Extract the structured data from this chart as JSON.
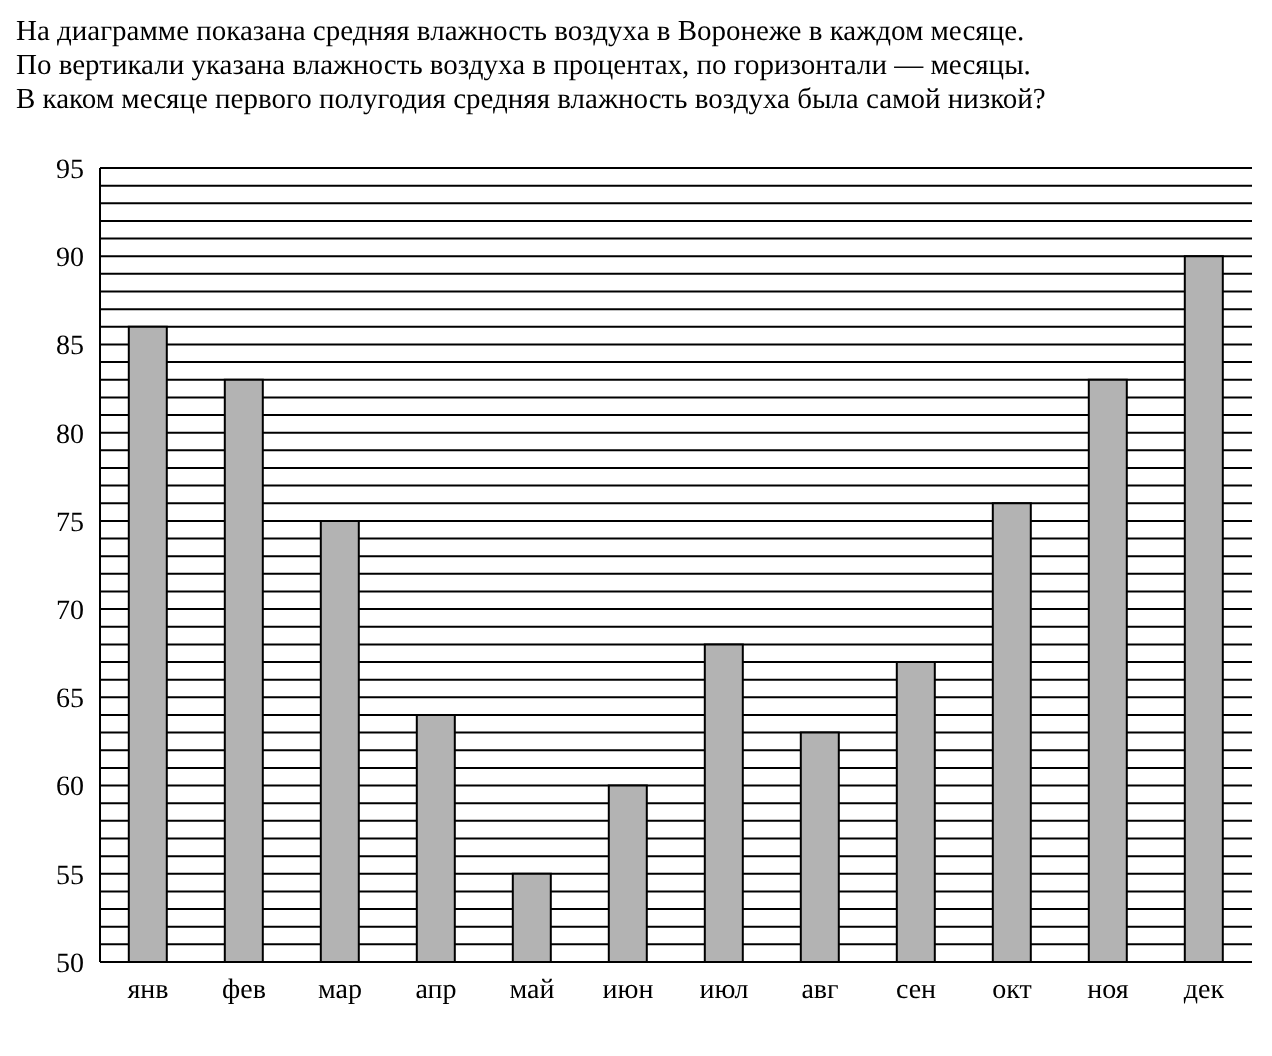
{
  "chart_data": {
    "type": "bar",
    "title": "На диаграмме показана средняя влажность воздуха в Воронеже в каждом месяце.",
    "subtitle": "По вертикали указана влажность воздуха в процентах, по горизонтали — месяцы.",
    "annotations": [
      "В каком месяце первого полугодия средняя влажность воздуха была самой низкой?"
    ],
    "categories": [
      "янв",
      "фев",
      "мар",
      "апр",
      "май",
      "июн",
      "июл",
      "авг",
      "сен",
      "окт",
      "ноя",
      "дек"
    ],
    "values": [
      86,
      83,
      75,
      64,
      55,
      60,
      68,
      63,
      67,
      76,
      83,
      90
    ],
    "color": "#b3b3b3",
    "ylim": [
      50,
      95
    ],
    "yticks": [
      50,
      {
        "value": 51,
        "label": null
      },
      {
        "value": 52,
        "label": null
      },
      {
        "value": 53,
        "label": null
      },
      {
        "value": 54,
        "label": null
      },
      55,
      {
        "value": 56,
        "label": null
      },
      {
        "value": 57,
        "label": null
      },
      {
        "value": 58,
        "label": null
      },
      {
        "value": 59,
        "label": null
      },
      60,
      {
        "value": 61,
        "label": null
      },
      {
        "value": 62,
        "label": null
      },
      {
        "value": 63,
        "label": null
      },
      {
        "value": 64,
        "label": null
      },
      65,
      {
        "value": 66,
        "label": null
      },
      {
        "value": 67,
        "label": null
      },
      {
        "value": 68,
        "label": null
      },
      {
        "value": 69,
        "label": null
      },
      70,
      {
        "value": 71,
        "label": null
      },
      {
        "value": 72,
        "label": null
      },
      {
        "value": 73,
        "label": null
      },
      {
        "value": 74,
        "label": null
      },
      75,
      {
        "value": 76,
        "label": null
      },
      {
        "value": 77,
        "label": null
      },
      {
        "value": 78,
        "label": null
      },
      {
        "value": 79,
        "label": null
      },
      80,
      {
        "value": 81,
        "label": null
      },
      {
        "value": 82,
        "label": null
      },
      {
        "value": 83,
        "label": null
      },
      {
        "value": 84,
        "label": null
      },
      85,
      {
        "value": 86,
        "label": null
      },
      {
        "value": 87,
        "label": null
      },
      {
        "value": 88,
        "label": null
      },
      {
        "value": 89,
        "label": null
      },
      90,
      {
        "value": 91,
        "label": null
      },
      {
        "value": 92,
        "label": null
      },
      {
        "value": 93,
        "label": null
      },
      {
        "value": 94,
        "label": null
      },
      95
    ],
    "grid": "y",
    "legend": false
  }
}
